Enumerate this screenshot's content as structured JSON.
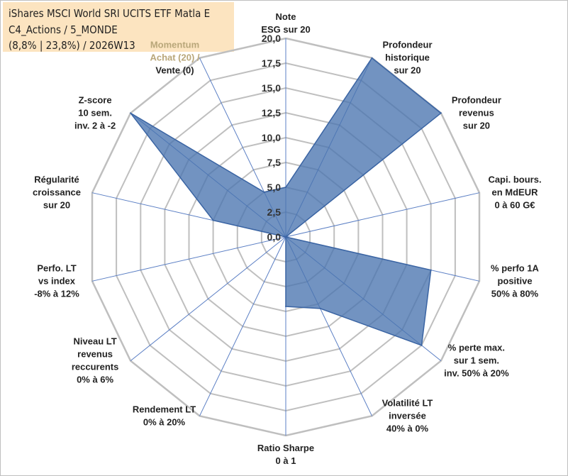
{
  "title": {
    "line1": "iShares MSCI World SRI UCITS ETF Matla E",
    "line2": "C4_Actions / 5_MONDE",
    "line3": "(8,8% | 23,8%) / 2026W13"
  },
  "colors": {
    "fill": "#4a74b0",
    "stroke": "#3a64a3",
    "grid": "#bfbfbf",
    "spoke": "#5b7fc4",
    "title_bg": "#fce4c0",
    "momentum_text": "#b9a77a"
  },
  "chart_data": {
    "type": "radar",
    "title": "iShares MSCI World SRI UCITS ETF Matla E",
    "ylim": [
      0,
      20
    ],
    "tick_step": 2.5,
    "grid": true,
    "tick_labels": [
      "0,0",
      "2,5",
      "5,0",
      "7,5",
      "10,0",
      "12,5",
      "15,0",
      "17,5",
      "20,0"
    ],
    "axes": [
      {
        "label": [
          "Note",
          "ESG sur 20"
        ],
        "value": 5
      },
      {
        "label": [
          "Profondeur",
          "historique",
          "sur 20"
        ],
        "value": 20
      },
      {
        "label": [
          "Profondeur",
          "revenus",
          "sur 20"
        ],
        "value": 20
      },
      {
        "label": [
          "Capi. bours.",
          "en MdEUR",
          "0 à 60 G€"
        ],
        "value": 0
      },
      {
        "label": [
          "% perfo 1A",
          "positive",
          "50% à 80%"
        ],
        "value": 15
      },
      {
        "label": [
          "% perte max.",
          "sur 1 sem.",
          "inv. 50% à 20%"
        ],
        "value": 17.5
      },
      {
        "label": [
          "Volatilité LT",
          "inversée",
          "40% à 0%"
        ],
        "value": 8
      },
      {
        "label": [
          "Ratio Sharpe",
          "0 à 1"
        ],
        "value": 7
      },
      {
        "label": [
          "Rendement LT",
          "0% à 20%"
        ],
        "value": 0
      },
      {
        "label": [
          "Niveau LT",
          "revenus",
          "reccurents",
          "0% à 6%"
        ],
        "value": 0
      },
      {
        "label": [
          "Perfo. LT",
          "vs index",
          "-8% à 12%"
        ],
        "value": 0
      },
      {
        "label": [
          "Régularité",
          "croissance",
          "sur 20"
        ],
        "value": 7.5
      },
      {
        "label": [
          "Z-score",
          "10 sem.",
          "inv. 2 à -2"
        ],
        "value": 20
      },
      {
        "label": [
          "Momentum",
          "Achat (20) /",
          "Vente (0)"
        ],
        "value": 5
      }
    ]
  }
}
